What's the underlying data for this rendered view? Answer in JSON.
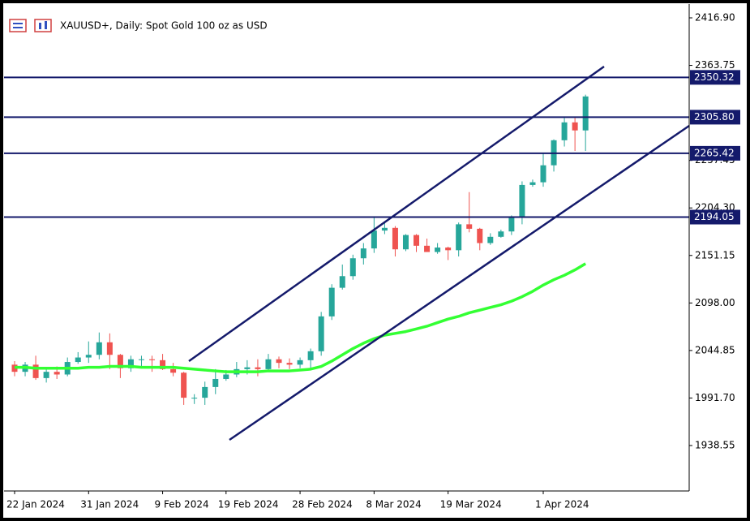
{
  "chart_data": {
    "type": "candlestick",
    "title": "XAUUSD+, Daily:  Spot Gold 100 oz as USD",
    "categories": [
      "22 Jan 2024",
      null,
      null,
      null,
      null,
      null,
      null,
      "31 Jan 2024",
      null,
      null,
      null,
      null,
      null,
      null,
      "9 Feb 2024",
      null,
      null,
      null,
      null,
      null,
      "19 Feb 2024",
      null,
      null,
      null,
      null,
      null,
      null,
      "28 Feb 2024",
      null,
      null,
      null,
      null,
      null,
      null,
      "8 Mar 2024",
      null,
      null,
      null,
      null,
      null,
      null,
      "19 Mar 2024",
      null,
      null,
      null,
      null,
      null,
      null,
      null,
      null,
      "1 Apr 2024",
      null,
      null,
      null,
      null
    ],
    "open": [
      2029,
      2021,
      2029,
      2014,
      2021,
      2018,
      2032,
      2037,
      2040,
      2054,
      2040,
      2025,
      2035,
      2035,
      2034,
      2024,
      2020,
      1992,
      1992,
      2004,
      2013,
      2018,
      2024,
      2026,
      2024,
      2035,
      2031,
      2029,
      2034,
      2044,
      2083,
      2115,
      2128,
      2148,
      2159,
      2179,
      2182,
      2158,
      2174,
      2162,
      2155,
      2160,
      2157,
      2186,
      2181,
      2165,
      2172,
      2178,
      2194,
      2230,
      2233,
      2252,
      2280,
      2300,
      2291
    ],
    "high": [
      2033,
      2032,
      2039,
      2026,
      2027,
      2037,
      2043,
      2055,
      2065,
      2064,
      2041,
      2039,
      2039,
      2039,
      2041,
      2031,
      2021,
      1996,
      2010,
      2024,
      2023,
      2032,
      2034,
      2035,
      2041,
      2038,
      2036,
      2037,
      2047,
      2088,
      2119,
      2141,
      2152,
      2165,
      2195,
      2189,
      2184,
      2175,
      2175,
      2170,
      2165,
      2161,
      2188,
      2222,
      2182,
      2176,
      2180,
      2196,
      2234,
      2236,
      2266,
      2281,
      2305,
      2305,
      2331
    ],
    "low": [
      2016,
      2016,
      2012,
      2009,
      2013,
      2016,
      2030,
      2031,
      2035,
      2024,
      2014,
      2021,
      2027,
      2021,
      2023,
      2016,
      1984,
      1985,
      1984,
      1996,
      2011,
      2015,
      2018,
      2016,
      2022,
      2025,
      2024,
      2025,
      2024,
      2039,
      2079,
      2113,
      2124,
      2141,
      2154,
      2175,
      2150,
      2156,
      2155,
      2156,
      2153,
      2146,
      2150,
      2177,
      2157,
      2163,
      2171,
      2174,
      2186,
      2228,
      2228,
      2245,
      2273,
      2268,
      2268
    ],
    "close": [
      2021,
      2029,
      2014,
      2021,
      2018,
      2032,
      2037,
      2040,
      2054,
      2040,
      2025,
      2035,
      2035,
      2034,
      2024,
      2020,
      1992,
      1992,
      2004,
      2013,
      2018,
      2024,
      2026,
      2024,
      2035,
      2031,
      2029,
      2034,
      2044,
      2083,
      2115,
      2128,
      2148,
      2159,
      2179,
      2182,
      2158,
      2174,
      2162,
      2155,
      2160,
      2157,
      2186,
      2181,
      2165,
      2172,
      2178,
      2194,
      2230,
      2233,
      2252,
      2280,
      2300,
      2291,
      2329
    ],
    "bull_color": "#26a69a",
    "bear_color": "#ef5350",
    "ma": {
      "color": "#33ff33",
      "values": [
        2026,
        2026,
        2025,
        2025,
        2025,
        2025,
        2025,
        2026,
        2026,
        2027,
        2027,
        2027,
        2026,
        2026,
        2026,
        2026,
        2025,
        2024,
        2023,
        2022,
        2021,
        2021,
        2021,
        2021,
        2022,
        2022,
        2022,
        2023,
        2024,
        2027,
        2033,
        2040,
        2047,
        2053,
        2058,
        2062,
        2064,
        2066,
        2069,
        2072,
        2076,
        2080,
        2083,
        2087,
        2090,
        2093,
        2096,
        2100,
        2105,
        2111,
        2118,
        2124,
        2129,
        2135,
        2142
      ]
    },
    "levels": [
      2350.32,
      {
        "value": 2305.8,
        "label": "2305.80"
      },
      2265.42,
      2194.05
    ],
    "level_color": "#141a6b",
    "ylim": [
      1887.72,
      2432.33
    ],
    "yticks": [
      {
        "value": 2416.9,
        "label": "2416.90"
      },
      2363.75,
      2257.45,
      {
        "value": 2204.3,
        "label": "2204.30"
      },
      2151.15,
      {
        "value": 2098,
        "label": "2098.00"
      },
      2044.85,
      {
        "value": 1991.7,
        "label": "1991.70"
      },
      1938.55
    ]
  }
}
